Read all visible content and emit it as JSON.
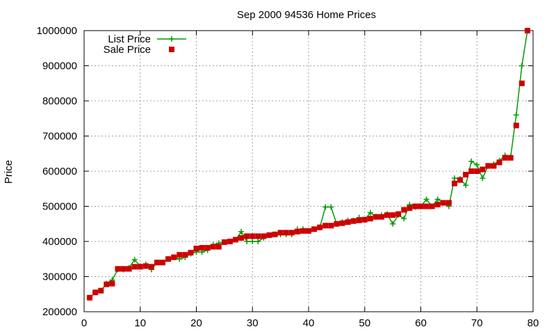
{
  "chart_data": {
    "type": "line",
    "title": "Sep 2000 94536 Home Prices",
    "xlabel": "",
    "ylabel": "Price",
    "xlim": [
      0,
      80
    ],
    "ylim": [
      200000,
      1000000
    ],
    "xticks": [
      0,
      10,
      20,
      30,
      40,
      50,
      60,
      70,
      80
    ],
    "yticks": [
      200000,
      300000,
      400000,
      500000,
      600000,
      700000,
      800000,
      900000,
      1000000
    ],
    "xtick_labels": [
      "0",
      "10",
      "20",
      "30",
      "40",
      "50",
      "60",
      "70",
      "80"
    ],
    "ytick_labels": [
      "200000",
      "300000",
      "400000",
      "500000",
      "600000",
      "700000",
      "800000",
      "900000",
      "1000000"
    ],
    "grid": true,
    "legend_position": "top-left",
    "series": [
      {
        "name": "List Price",
        "style": "line-with-plus-markers",
        "color": "#009900",
        "values": [
          240000,
          255000,
          260000,
          280000,
          290000,
          320000,
          320000,
          325000,
          348000,
          330000,
          335000,
          320000,
          340000,
          340000,
          350000,
          355000,
          350000,
          355000,
          365000,
          370000,
          370000,
          375000,
          390000,
          395000,
          398000,
          400000,
          405000,
          428000,
          400000,
          400000,
          400000,
          410000,
          418000,
          420000,
          420000,
          420000,
          420000,
          435000,
          435000,
          430000,
          435000,
          440000,
          498000,
          498000,
          450000,
          455000,
          460000,
          460000,
          468000,
          462000,
          482000,
          470000,
          475000,
          478000,
          450000,
          475000,
          465000,
          505000,
          498000,
          500000,
          520000,
          500000,
          520000,
          510000,
          500000,
          580000,
          578000,
          560000,
          628000,
          618000,
          580000,
          615000,
          620000,
          630000,
          645000,
          640000,
          760000,
          900000,
          1000000
        ]
      },
      {
        "name": "Sale Price",
        "style": "square-markers",
        "color": "#cc0000",
        "values": [
          240000,
          255000,
          260000,
          278000,
          280000,
          322000,
          322000,
          322000,
          328000,
          328000,
          330000,
          328000,
          340000,
          340000,
          350000,
          355000,
          362000,
          362000,
          368000,
          380000,
          382000,
          382000,
          385000,
          385000,
          398000,
          400000,
          405000,
          410000,
          415000,
          415000,
          415000,
          415000,
          418000,
          420000,
          425000,
          425000,
          425000,
          428000,
          430000,
          430000,
          435000,
          440000,
          445000,
          445000,
          450000,
          452000,
          455000,
          458000,
          460000,
          462000,
          465000,
          470000,
          470000,
          475000,
          475000,
          478000,
          490000,
          495000,
          500000,
          500000,
          500000,
          500000,
          505000,
          510000,
          510000,
          565000,
          575000,
          590000,
          600000,
          600000,
          605000,
          615000,
          615000,
          625000,
          638000,
          638000,
          730000,
          850000,
          1000000
        ]
      }
    ],
    "x": [
      1,
      2,
      3,
      4,
      5,
      6,
      7,
      8,
      9,
      10,
      11,
      12,
      13,
      14,
      15,
      16,
      17,
      18,
      19,
      20,
      21,
      22,
      23,
      24,
      25,
      26,
      27,
      28,
      29,
      30,
      31,
      32,
      33,
      34,
      35,
      36,
      37,
      38,
      39,
      40,
      41,
      42,
      43,
      44,
      45,
      46,
      47,
      48,
      49,
      50,
      51,
      52,
      53,
      54,
      55,
      56,
      57,
      58,
      59,
      60,
      61,
      62,
      63,
      64,
      65,
      66,
      67,
      68,
      69,
      70,
      71,
      72,
      73,
      74,
      75,
      76,
      77,
      78,
      79
    ]
  }
}
